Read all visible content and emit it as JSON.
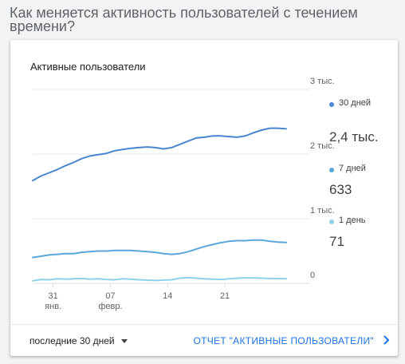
{
  "page": {
    "title": "Как меняется активность пользователей с течением времени?"
  },
  "card": {
    "title": "Активные пользователи",
    "legend": [
      {
        "label": "30 дней",
        "value": "2,4 тыс.",
        "color": "#4a86cf"
      },
      {
        "label": "7 дней",
        "value": "633",
        "color": "#5aa7dc"
      },
      {
        "label": "1 день",
        "value": "71",
        "color": "#8fd0ec"
      }
    ],
    "footer": {
      "range_label": "последние 30 дней",
      "report_link": "ОТЧЕТ \"АКТИВНЫЕ ПОЛЬЗОВАТЕЛИ\"",
      "dropdown_icon": "caret-down-icon",
      "chevron_icon": "chevron-right-icon"
    }
  },
  "chart_data": {
    "type": "line",
    "title": "Активные пользователи",
    "x": [
      1,
      2,
      3,
      4,
      5,
      6,
      7,
      8,
      9,
      10,
      11,
      12,
      13,
      14,
      15,
      16,
      17,
      18,
      19,
      20,
      21,
      22,
      23,
      24,
      25,
      26,
      27,
      28,
      29,
      30,
      31,
      32
    ],
    "x_ticks": [
      {
        "x": 3.5,
        "label": "31",
        "sublabel": "янв."
      },
      {
        "x": 10.5,
        "label": "07",
        "sublabel": "февр."
      },
      {
        "x": 17.5,
        "label": "14",
        "sublabel": ""
      },
      {
        "x": 24.5,
        "label": "21",
        "sublabel": ""
      }
    ],
    "y_ticks": [
      {
        "value": 0,
        "label": "0"
      },
      {
        "value": 1000,
        "label": "1 тыс."
      },
      {
        "value": 2000,
        "label": "2 тыс."
      },
      {
        "value": 3000,
        "label": "3 тыс."
      }
    ],
    "ylim": [
      0,
      3000
    ],
    "y_axis_side": "right",
    "grid": true,
    "legend_placement": "right",
    "series": [
      {
        "name": "30 дней",
        "color": "#4a86cf",
        "values": [
          1590,
          1660,
          1710,
          1760,
          1820,
          1870,
          1930,
          1970,
          1990,
          2010,
          2050,
          2070,
          2090,
          2100,
          2110,
          2100,
          2080,
          2100,
          2150,
          2200,
          2250,
          2260,
          2280,
          2280,
          2270,
          2260,
          2280,
          2330,
          2370,
          2400,
          2400,
          2390
        ]
      },
      {
        "name": "7 дней",
        "color": "#5aa7dc",
        "values": [
          400,
          420,
          440,
          450,
          460,
          460,
          480,
          490,
          500,
          500,
          510,
          510,
          510,
          500,
          490,
          480,
          460,
          450,
          460,
          490,
          530,
          570,
          600,
          630,
          650,
          660,
          660,
          670,
          670,
          650,
          640,
          633
        ]
      },
      {
        "name": "1 день",
        "color": "#8fd0ec",
        "values": [
          40,
          60,
          55,
          70,
          65,
          70,
          75,
          65,
          70,
          60,
          55,
          70,
          65,
          55,
          50,
          45,
          50,
          55,
          80,
          90,
          80,
          70,
          65,
          60,
          70,
          80,
          85,
          85,
          80,
          75,
          75,
          71
        ]
      }
    ]
  }
}
